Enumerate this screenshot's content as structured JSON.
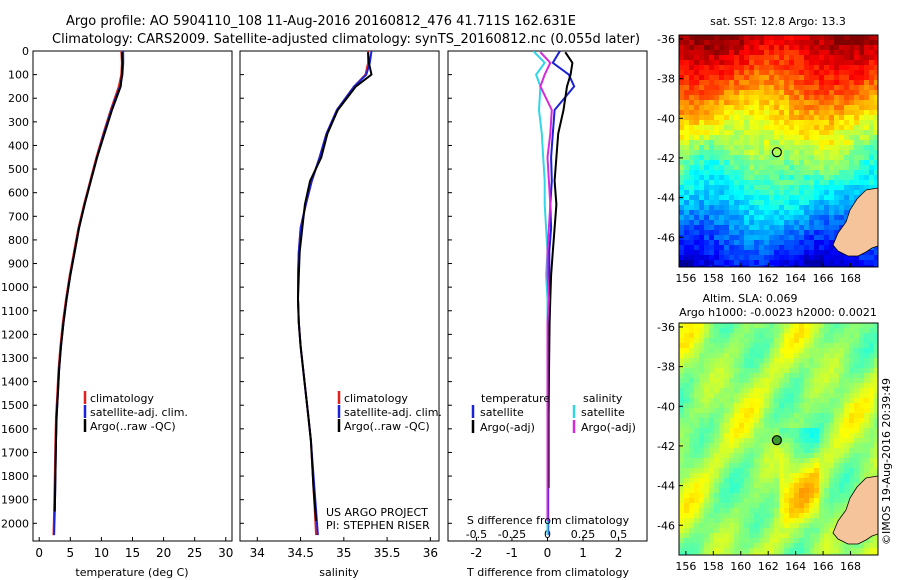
{
  "header": {
    "line1": "Argo profile: AO 5904110_108 11-Aug-2016 20160812_476 41.711S 162.631E",
    "line2": "Climatology: CARS2009. Satellite-adjusted climatology: synTS_20160812.nc (0.055d later)"
  },
  "colors": {
    "climatology": "#e0201e",
    "satellite": "#1c23d6",
    "argo": "#000000",
    "sal_satellite": "#33d6e6",
    "sal_argo": "#d52adb",
    "land": "#f6c49a"
  },
  "chart_data": [
    {
      "type": "line",
      "panel": "temperature",
      "xlabel": "temperature (deg C)",
      "ylabel": "",
      "xlim": [
        -1,
        31
      ],
      "ylim": [
        2075,
        0
      ],
      "xticks": [
        "0",
        "5",
        "10",
        "15",
        "20",
        "25",
        "30"
      ],
      "xtick_values": [
        0,
        5,
        10,
        15,
        20,
        25,
        30
      ],
      "yticks": [
        "0",
        "100",
        "200",
        "300",
        "400",
        "500",
        "600",
        "700",
        "800",
        "900",
        "1000",
        "1100",
        "1200",
        "1300",
        "1400",
        "1500",
        "1600",
        "1700",
        "1800",
        "1900",
        "2000"
      ],
      "ytick_values": [
        0,
        100,
        200,
        300,
        400,
        500,
        600,
        700,
        800,
        900,
        1000,
        1100,
        1200,
        1300,
        1400,
        1500,
        1600,
        1700,
        1800,
        1900,
        2000
      ],
      "legend": [
        "climatology",
        "satellite-adj. clim.",
        "Argo(..raw -QC)"
      ],
      "series": [
        {
          "name": "climatology",
          "x": [
            13.2,
            13.3,
            13.2,
            12.8,
            11.5,
            10.3,
            9.2,
            8.2,
            7.2,
            6.3,
            5.6,
            4.9,
            4.3,
            3.8,
            3.4,
            3.1,
            2.9,
            2.7,
            2.6,
            2.5,
            2.4,
            2.3
          ],
          "y": [
            0,
            50,
            100,
            150,
            250,
            350,
            450,
            550,
            650,
            750,
            850,
            950,
            1050,
            1150,
            1250,
            1350,
            1450,
            1550,
            1650,
            1800,
            1950,
            2050
          ]
        },
        {
          "name": "satellite-adj. clim.",
          "x": [
            13.5,
            13.5,
            13.4,
            13.0,
            11.6,
            10.4,
            9.3,
            8.3,
            7.3,
            6.4,
            5.7,
            5.0,
            4.4,
            3.9,
            3.5,
            3.2,
            3.0,
            2.8,
            2.7,
            2.6,
            2.5,
            2.4
          ],
          "y": [
            0,
            50,
            100,
            150,
            250,
            350,
            450,
            550,
            650,
            750,
            850,
            950,
            1050,
            1150,
            1250,
            1350,
            1450,
            1550,
            1650,
            1800,
            1950,
            2050
          ]
        },
        {
          "name": "Argo(..raw -QC)",
          "x": [
            13.3,
            13.4,
            13.3,
            13.1,
            11.7,
            10.5,
            9.3,
            8.3,
            7.3,
            6.4,
            5.7,
            5.0,
            4.4,
            3.9,
            3.5,
            3.2,
            3.0,
            2.8,
            2.7,
            2.6,
            2.5
          ],
          "y": [
            5,
            50,
            100,
            150,
            250,
            350,
            450,
            550,
            650,
            750,
            850,
            950,
            1050,
            1150,
            1250,
            1350,
            1450,
            1550,
            1650,
            1800,
            1950
          ]
        }
      ]
    },
    {
      "type": "line",
      "panel": "salinity",
      "xlabel": "salinity",
      "ylabel": "",
      "xlim": [
        33.8,
        36.1
      ],
      "ylim": [
        2075,
        0
      ],
      "xticks": [
        "34",
        "34.5",
        "35",
        "35.5",
        "36"
      ],
      "xtick_values": [
        34,
        34.5,
        35,
        35.5,
        36
      ],
      "legend": [
        "climatology",
        "satellite-adj. clim.",
        "Argo(..raw -QC)"
      ],
      "annotations": [
        "US ARGO PROJECT",
        "PI: STEPHEN RISER"
      ],
      "series": [
        {
          "name": "climatology",
          "x": [
            35.28,
            35.28,
            35.25,
            35.12,
            34.92,
            34.8,
            34.72,
            34.63,
            34.56,
            34.5,
            34.48,
            34.47,
            34.47,
            34.48,
            34.5,
            34.53,
            34.56,
            34.59,
            34.62,
            34.65,
            34.68
          ],
          "y": [
            0,
            50,
            100,
            150,
            250,
            350,
            450,
            550,
            650,
            750,
            850,
            950,
            1050,
            1150,
            1250,
            1350,
            1450,
            1550,
            1650,
            1850,
            2050
          ]
        },
        {
          "name": "satellite-adj. clim.",
          "x": [
            35.32,
            35.3,
            35.26,
            35.12,
            34.92,
            34.8,
            34.72,
            34.63,
            34.56,
            34.5,
            34.48,
            34.47,
            34.47,
            34.48,
            34.5,
            34.53,
            34.56,
            34.59,
            34.62,
            34.66,
            34.7
          ],
          "y": [
            0,
            50,
            100,
            150,
            250,
            350,
            450,
            550,
            650,
            750,
            850,
            950,
            1050,
            1150,
            1250,
            1350,
            1450,
            1550,
            1650,
            1850,
            2050
          ]
        },
        {
          "name": "Argo(..raw -QC)",
          "x": [
            35.28,
            35.29,
            35.32,
            35.14,
            34.93,
            34.81,
            34.74,
            34.61,
            34.55,
            34.52,
            34.49,
            34.48,
            34.47,
            34.48,
            34.5,
            34.53,
            34.56,
            34.59,
            34.62,
            34.65,
            34.68
          ],
          "y": [
            5,
            50,
            100,
            150,
            250,
            350,
            450,
            550,
            650,
            750,
            850,
            950,
            1050,
            1150,
            1250,
            1350,
            1450,
            1550,
            1650,
            1850,
            1990
          ]
        }
      ]
    },
    {
      "type": "line",
      "panel": "difference",
      "xlabel": "T difference from climatology",
      "xlabel_top": "S difference from climatology",
      "xlim": [
        -2.8,
        2.8
      ],
      "ylim": [
        2075,
        0
      ],
      "xticks": [
        "-2",
        "-1",
        "0",
        "1",
        "2"
      ],
      "xtick_values": [
        -2,
        -1,
        0,
        1,
        2
      ],
      "sticks": [
        "-0.5",
        "-0.25",
        "0",
        "0.25",
        "0.5"
      ],
      "stick_values": [
        -0.5,
        -0.25,
        0,
        0.25,
        0.5
      ],
      "legend_temperature": {
        "heading": "temperature",
        "items": [
          "satellite",
          "Argo(-adj)"
        ]
      },
      "legend_salinity": {
        "heading": "salinity",
        "items": [
          "satellite",
          "Argo(-adj)"
        ]
      },
      "series": [
        {
          "name": "temperature satellite",
          "x": [
            0.35,
            0.15,
            0.6,
            0.75,
            0.2,
            0.15,
            0.1,
            0.12,
            0.08,
            0.1,
            0.05,
            0.05,
            0.03,
            0.05,
            0.03,
            0.02,
            0.02,
            0.02,
            0.02,
            0.02
          ],
          "y": [
            0,
            50,
            100,
            150,
            250,
            350,
            450,
            550,
            650,
            750,
            850,
            950,
            1050,
            1150,
            1250,
            1400,
            1550,
            1700,
            1850,
            2050
          ]
        },
        {
          "name": "temperature Argo(-adj)",
          "x": [
            0.5,
            0.7,
            0.65,
            0.55,
            0.45,
            0.3,
            0.25,
            0.2,
            0.25,
            0.2,
            0.15,
            0.1,
            0.08,
            0.06,
            0.05,
            0.04,
            0.03,
            0.03,
            0.03
          ],
          "y": [
            5,
            50,
            100,
            150,
            250,
            350,
            450,
            550,
            650,
            750,
            850,
            950,
            1050,
            1150,
            1250,
            1400,
            1550,
            1700,
            1850
          ]
        },
        {
          "name": "salinity satellite",
          "x": [
            -0.1,
            -0.02,
            -0.08,
            -0.05,
            -0.06,
            -0.04,
            -0.03,
            -0.02,
            -0.02,
            -0.01,
            0.0,
            -0.01,
            0.0,
            0.0,
            0.0,
            0.0,
            0.0,
            0.0,
            0.0
          ],
          "y": [
            0,
            50,
            100,
            150,
            250,
            350,
            450,
            550,
            650,
            750,
            850,
            950,
            1050,
            1150,
            1250,
            1400,
            1550,
            1700,
            2050
          ]
        },
        {
          "name": "salinity Argo(-adj)",
          "x": [
            -0.05,
            0.02,
            -0.02,
            -0.05,
            0.03,
            0.02,
            0.0,
            0.01,
            0.02,
            0.01,
            0.0,
            0.0,
            0.01,
            0.0,
            0.0,
            0.0,
            0.0,
            0.0
          ],
          "y": [
            5,
            50,
            100,
            150,
            250,
            350,
            450,
            550,
            650,
            750,
            850,
            950,
            1050,
            1150,
            1300,
            1500,
            1700,
            1990
          ]
        }
      ]
    },
    {
      "type": "heatmap",
      "panel": "sst-map",
      "title": "sat. SST: 12.8 Argo: 13.3",
      "xlim": [
        155.5,
        170
      ],
      "ylim": [
        -47.5,
        -35.8
      ],
      "xticks": [
        "156",
        "158",
        "160",
        "162",
        "164",
        "166",
        "168"
      ],
      "xtick_values": [
        156,
        158,
        160,
        162,
        164,
        166,
        168
      ],
      "yticks": [
        "-36",
        "-38",
        "-40",
        "-42",
        "-44",
        "-46"
      ],
      "ytick_values": [
        -36,
        -38,
        -40,
        -42,
        -44,
        -46
      ],
      "marker": {
        "lon": 162.631,
        "lat": -41.711
      }
    },
    {
      "type": "heatmap",
      "panel": "sla-map",
      "title": "Altim. SLA: 0.069",
      "subtitle": "Argo h1000: -0.0023 h2000: 0.0021",
      "xlim": [
        155.5,
        170
      ],
      "ylim": [
        -47.5,
        -35.8
      ],
      "xticks": [
        "156",
        "158",
        "160",
        "162",
        "164",
        "166",
        "168"
      ],
      "xtick_values": [
        156,
        158,
        160,
        162,
        164,
        166,
        168
      ],
      "yticks": [
        "-36",
        "-38",
        "-40",
        "-42",
        "-44",
        "-46"
      ],
      "ytick_values": [
        -36,
        -38,
        -40,
        -42,
        -44,
        -46
      ],
      "marker": {
        "lon": 162.631,
        "lat": -41.711
      }
    }
  ],
  "credit": "©IMOS 19-Aug-2016 20:39:49"
}
